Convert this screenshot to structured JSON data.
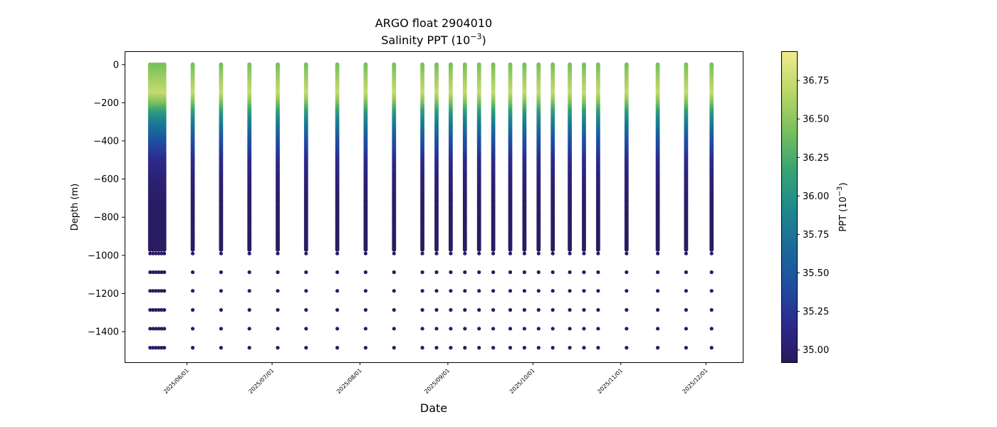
{
  "chart_data": {
    "type": "scatter",
    "title": "ARGO float 2904010",
    "subtitle_base": "Salinity PPT (10",
    "subtitle_exp": "−3",
    "subtitle_close": ")",
    "xlabel": "Date",
    "ylabel": "Depth (m)",
    "ylim": [
      -1560,
      70
    ],
    "xlim": [
      "2025-05-10",
      "2025-12-14"
    ],
    "x_ticks": [
      "2025/06/01",
      "2025/07/01",
      "2025/08/01",
      "2025/09/01",
      "2025/10/01",
      "2025/11/01",
      "2025/12/01"
    ],
    "y_ticks": [
      0,
      -200,
      -400,
      -600,
      -800,
      -1000,
      -1200,
      -1400
    ],
    "grid": false,
    "colorbar": {
      "label_base": "PPT (10",
      "label_exp": "−3",
      "label_close": ")",
      "range": [
        34.92,
        36.94
      ],
      "ticks": [
        35.0,
        35.25,
        35.5,
        35.75,
        36.0,
        36.25,
        36.5,
        36.75
      ],
      "tick_labels": [
        "35.00",
        "35.25",
        "35.50",
        "35.75",
        "36.00",
        "36.25",
        "36.50",
        "36.75"
      ],
      "colormap": [
        "#2a1a5e",
        "#2c2a8c",
        "#1f4ea1",
        "#1b6b9a",
        "#1f8a8c",
        "#3aa572",
        "#7cc15c",
        "#bcd86a",
        "#f0ec8e"
      ]
    },
    "deep_depths": [
      -990,
      -1088,
      -1186,
      -1286,
      -1384,
      -1484
    ],
    "salinity_profile": {
      "depths": [
        0,
        -50,
        -100,
        -150,
        -200,
        -250,
        -300,
        -400,
        -500,
        -600,
        -700,
        -800,
        -990
      ],
      "values": [
        36.42,
        36.52,
        36.62,
        36.72,
        36.45,
        36.1,
        35.85,
        35.45,
        35.18,
        35.05,
        34.98,
        34.95,
        34.94
      ]
    },
    "profile_dates": [
      "2025-05-19",
      "2025-05-20",
      "2025-05-21",
      "2025-05-22",
      "2025-05-23",
      "2025-05-24",
      "2025-06-03",
      "2025-06-13",
      "2025-06-23",
      "2025-07-03",
      "2025-07-13",
      "2025-07-24",
      "2025-08-03",
      "2025-08-13",
      "2025-08-23",
      "2025-08-28",
      "2025-09-02",
      "2025-09-07",
      "2025-09-12",
      "2025-09-17",
      "2025-09-23",
      "2025-09-28",
      "2025-10-03",
      "2025-10-08",
      "2025-10-14",
      "2025-10-19",
      "2025-10-24",
      "2025-11-03",
      "2025-11-14",
      "2025-11-24",
      "2025-12-03"
    ]
  }
}
